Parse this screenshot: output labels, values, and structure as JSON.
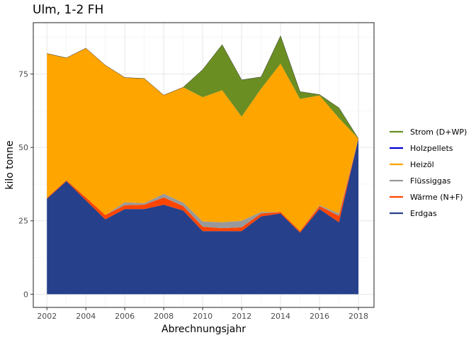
{
  "chart_data": {
    "type": "area",
    "stacked": true,
    "title": "Ulm, 1-2 FH",
    "xlabel": "Abrechnungsjahr",
    "ylabel": "kilo tonne",
    "xlim": [
      2001.3,
      2018.8
    ],
    "ylim": [
      -4.5,
      92.5
    ],
    "x_ticks": [
      2002,
      2004,
      2006,
      2008,
      2010,
      2012,
      2014,
      2016,
      2018
    ],
    "x_tick_labels": [
      "2002",
      "2004",
      "2006",
      "2008",
      "2010",
      "2012",
      "2014",
      "2016",
      "2018"
    ],
    "y_ticks": [
      0,
      25,
      50,
      75
    ],
    "y_tick_labels": [
      "0",
      "25",
      "50",
      "75"
    ],
    "grid": true,
    "legend_position": "right",
    "x": [
      2002,
      2003,
      2004,
      2005,
      2006,
      2007,
      2008,
      2009,
      2010,
      2011,
      2012,
      2013,
      2014,
      2015,
      2016,
      2017,
      2018
    ],
    "series": [
      {
        "name": "Erdgas",
        "color": "#26408B",
        "values": [
          32.5,
          38.5,
          32.0,
          25.5,
          29.0,
          29.0,
          30.5,
          28.5,
          21.5,
          21.5,
          21.5,
          26.5,
          27.5,
          21.0,
          29.0,
          24.5,
          53.0
        ]
      },
      {
        "name": "Wärme (N+F)",
        "color": "#FF4500",
        "values": [
          0.3,
          0.3,
          1.0,
          1.5,
          1.3,
          1.5,
          2.5,
          1.5,
          1.5,
          1.0,
          1.3,
          1.0,
          0.5,
          0.5,
          1.0,
          2.2,
          0.0
        ]
      },
      {
        "name": "Flüssiggas",
        "color": "#999999",
        "values": [
          0.0,
          0.0,
          0.0,
          0.0,
          1.0,
          0.5,
          1.2,
          1.2,
          1.8,
          2.0,
          2.2,
          0.5,
          0.0,
          0.0,
          0.3,
          0.8,
          0.0
        ]
      },
      {
        "name": "Heizöl",
        "color": "#FFA500",
        "values": [
          49.2,
          41.7,
          50.8,
          51.0,
          42.5,
          42.5,
          33.6,
          39.3,
          42.3,
          45.0,
          35.5,
          42.0,
          50.5,
          45.0,
          37.4,
          32.5,
          0.0
        ]
      },
      {
        "name": "Holzpellets",
        "color": "#0000CD",
        "values": [
          0.0,
          0.0,
          0.0,
          0.0,
          0.0,
          0.0,
          0.0,
          0.0,
          0.0,
          0.0,
          0.0,
          0.0,
          0.0,
          0.0,
          0.0,
          0.0,
          0.0
        ]
      },
      {
        "name": "Strom (D+WP)",
        "color": "#6B8E23",
        "values": [
          0.0,
          0.0,
          0.0,
          0.0,
          0.0,
          0.0,
          0.0,
          0.0,
          9.4,
          15.5,
          12.5,
          4.0,
          9.5,
          2.5,
          0.3,
          3.5,
          0.0
        ]
      }
    ],
    "legend_order": [
      "Strom (D+WP)",
      "Holzpellets",
      "Heizöl",
      "Flüssiggas",
      "Wärme (N+F)",
      "Erdgas"
    ]
  }
}
